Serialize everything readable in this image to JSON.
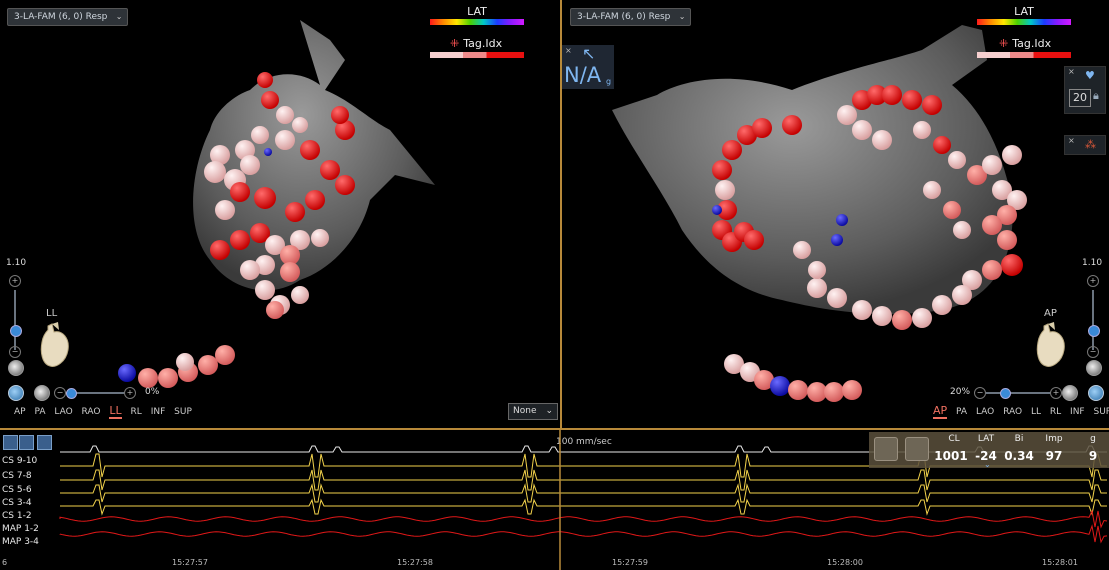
{
  "left_view": {
    "map_name": "3-LA-FAM (6, 0) Resp",
    "lat_label": "LAT",
    "tag_label": "Tag.Idx",
    "zoom_value": "1.10",
    "orientation": "LL",
    "opacity_pct": "0%",
    "view_tabs": [
      "AP",
      "PA",
      "LAO",
      "RAO",
      "LL",
      "RL",
      "INF",
      "SUP"
    ],
    "active_tab": "LL",
    "none_select": "None"
  },
  "right_view": {
    "map_name": "3-LA-FAM (6, 0) Resp",
    "lat_label": "LAT",
    "tag_label": "Tag.Idx",
    "na_text": "N/A",
    "na_sub": "g",
    "zoom_value": "1.10",
    "orientation": "AP",
    "opacity_pct": "20%",
    "tool_value": "20",
    "view_tabs": [
      "AP",
      "PA",
      "LAO",
      "RAO",
      "LL",
      "RL",
      "INF",
      "SUP"
    ],
    "active_tab": "AP"
  },
  "ecg": {
    "speed": "100 mm/sec",
    "channels": [
      "CS 9-10",
      "CS 7-8",
      "CS 5-6",
      "CS 3-4",
      "CS 1-2",
      "MAP 1-2",
      "MAP 3-4"
    ],
    "channel_colors": [
      "#e8e8e8",
      "#f2d24b",
      "#f2d24b",
      "#f2d24b",
      "#f2d24b",
      "#e01818",
      "#e01818"
    ],
    "times": [
      "15:27:57",
      "15:27:58",
      "15:27:59",
      "15:28:00",
      "15:28:01"
    ],
    "edge_marker": "6"
  },
  "measurements": {
    "headers": [
      "CL",
      "LAT",
      "Bi",
      "Imp",
      "g"
    ],
    "values": [
      "1001",
      "-24",
      "0.34",
      "97",
      "9"
    ]
  },
  "colors": {
    "separator": "#b88a3a",
    "accent_blue": "#3a8ad8",
    "tag_red": "#e81010",
    "tag_pink": "#f6cfcf"
  }
}
